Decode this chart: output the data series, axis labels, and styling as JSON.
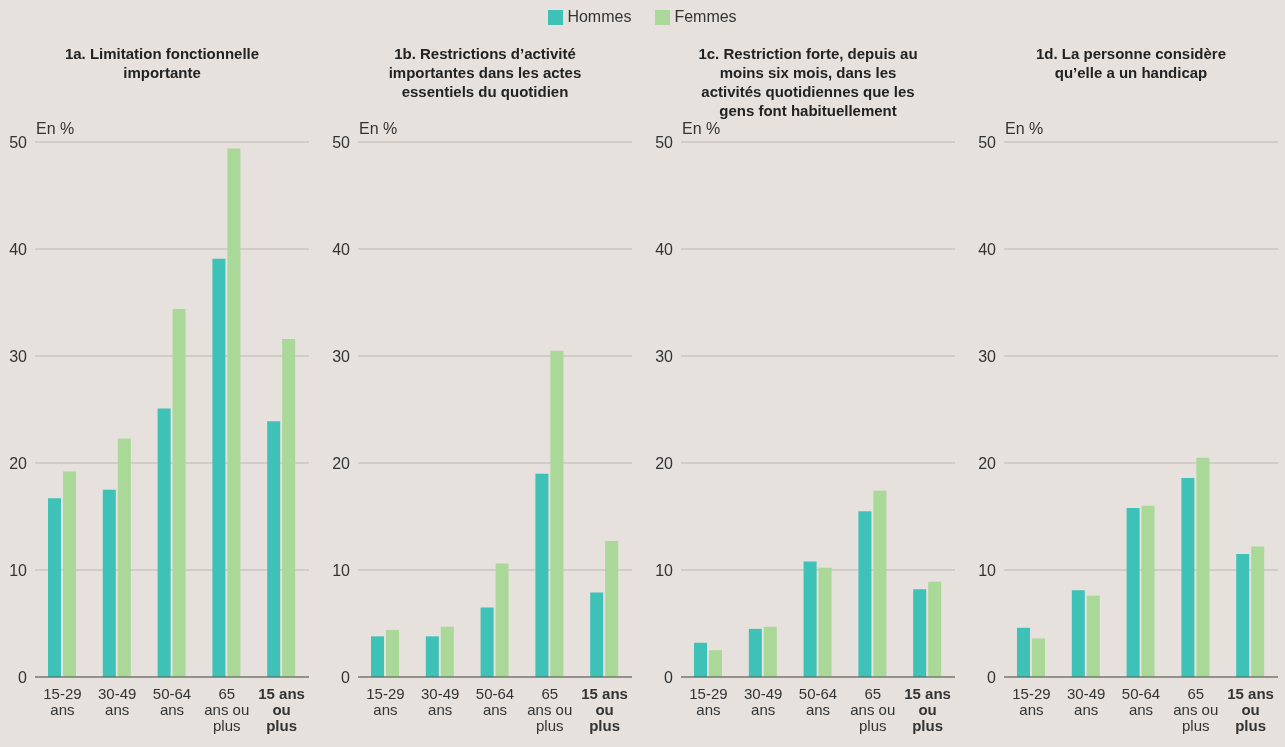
{
  "chart_data": [
    {
      "type": "bar",
      "title": "1a. Limitation fonctionnelle importante",
      "ylabel": "En %",
      "categories": [
        "15-29\nans",
        "30-49\nans",
        "50-64\nans",
        "65\nans ou\nplus",
        "15 ans\nou\nplus"
      ],
      "legend": "top",
      "grid": "y",
      "ylim": [
        0,
        50
      ],
      "yticks": [
        0,
        10,
        20,
        30,
        40,
        50
      ],
      "series": [
        {
          "name": "Hommes",
          "color": "#3ec1b6",
          "values": [
            16.7,
            17.5,
            25.1,
            39.1,
            23.9
          ]
        },
        {
          "name": "Femmes",
          "color": "#a9d898",
          "values": [
            19.2,
            22.3,
            34.4,
            49.4,
            31.6
          ]
        }
      ]
    },
    {
      "type": "bar",
      "title": "1b. Restrictions d’activité importantes dans les actes essentiels du quotidien",
      "ylabel": "En %",
      "categories": [
        "15-29\nans",
        "30-49\nans",
        "50-64\nans",
        "65\nans ou\nplus",
        "15 ans\nou\nplus"
      ],
      "grid": "y",
      "ylim": [
        0,
        50
      ],
      "yticks": [
        0,
        10,
        20,
        30,
        40,
        50
      ],
      "series": [
        {
          "color": "#3ec1b6",
          "values": [
            3.8,
            3.8,
            6.5,
            19.0,
            7.9
          ]
        },
        {
          "color": "#a9d898",
          "values": [
            4.4,
            4.7,
            10.6,
            30.5,
            12.7
          ]
        }
      ]
    },
    {
      "type": "bar",
      "title": "1c. Restriction forte, depuis au moins six mois, dans les activités quotidiennes que les gens font habituellement",
      "ylabel": "En %",
      "categories": [
        "15-29\nans",
        "30-49\nans",
        "50-64\nans",
        "65\nans ou\nplus",
        "15 ans\nou\nplus"
      ],
      "grid": "y",
      "ylim": [
        0,
        50
      ],
      "yticks": [
        0,
        10,
        20,
        30,
        40,
        50
      ],
      "series": [
        {
          "color": "#3ec1b6",
          "values": [
            3.2,
            4.5,
            10.8,
            15.5,
            8.2
          ]
        },
        {
          "color": "#a9d898",
          "values": [
            2.5,
            4.7,
            10.2,
            17.4,
            8.9
          ]
        }
      ]
    },
    {
      "type": "bar",
      "title": "1d. La personne considère qu’elle a un handicap",
      "ylabel": "En %",
      "categories": [
        "15-29\nans",
        "30-49\nans",
        "50-64\nans",
        "65\nans ou\nplus",
        "15 ans\nou\nplus"
      ],
      "grid": "y",
      "ylim": [
        0,
        50
      ],
      "yticks": [
        0,
        10,
        20,
        30,
        40,
        50
      ],
      "series": [
        {
          "color": "#3ec1b6",
          "values": [
            4.6,
            8.1,
            15.8,
            18.6,
            11.5
          ]
        },
        {
          "color": "#a9d898",
          "values": [
            3.6,
            7.6,
            16.0,
            20.5,
            12.2
          ]
        }
      ]
    }
  ]
}
